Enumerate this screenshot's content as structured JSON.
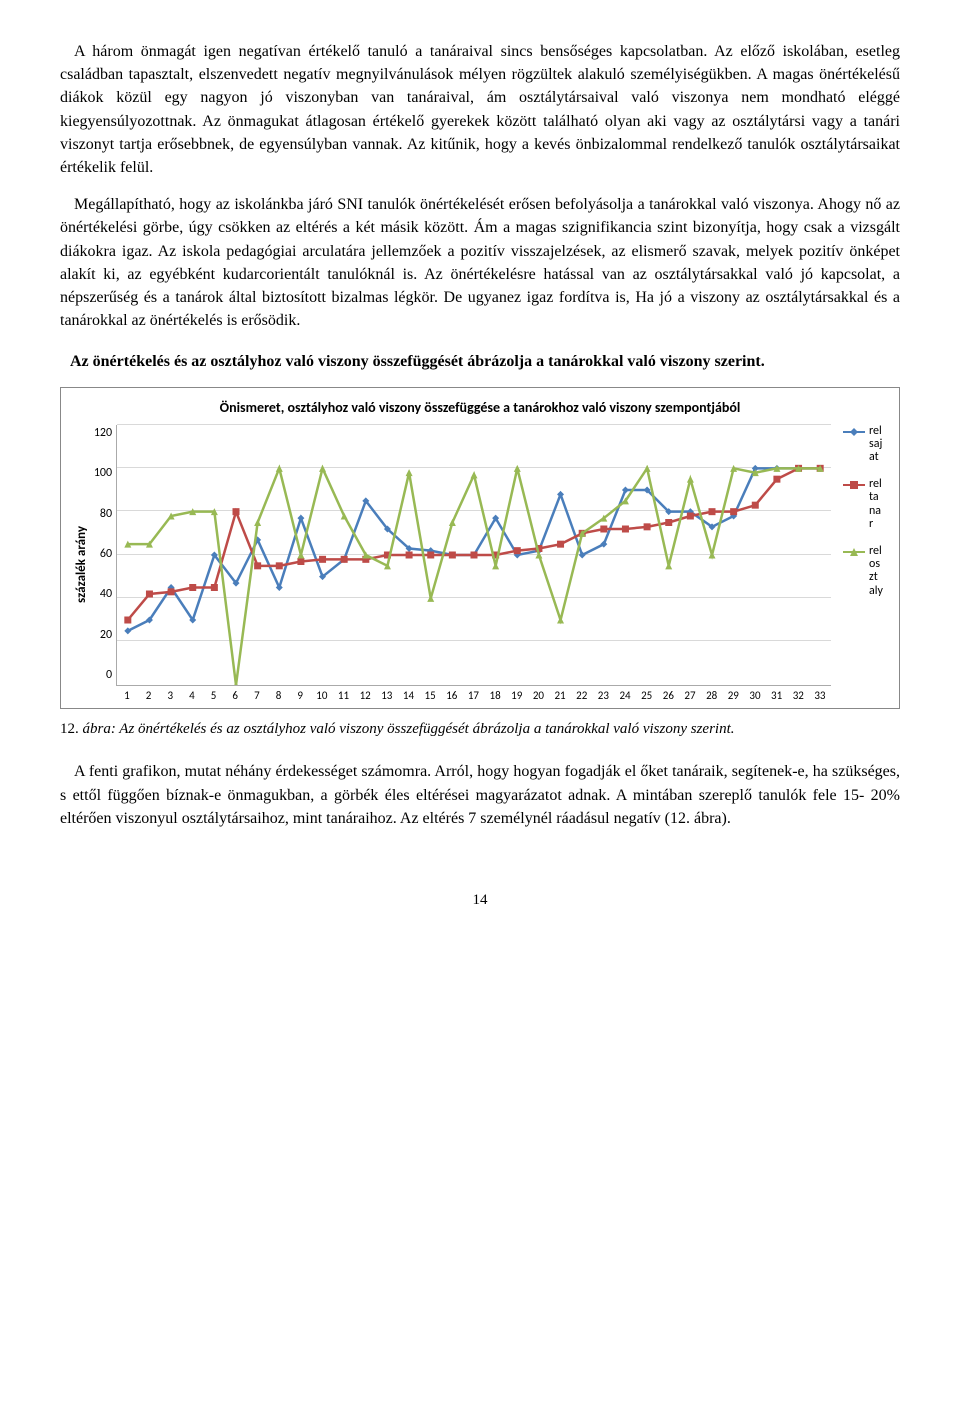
{
  "paragraphs": {
    "p1": "A három önmagát igen negatívan értékelő tanuló a tanáraival sincs bensőséges kapcsolatban. Az előző iskolában, esetleg családban tapasztalt, elszenvedett negatív megnyilvánulások mélyen rögzültek alakuló személyiségükben. A magas önértékelésű diákok közül egy nagyon jó viszonyban van tanáraival, ám osztálytársaival való viszonya nem mondható eléggé kiegyensúlyozottnak. Az önmagukat átlagosan értékelő gyerekek között található olyan aki vagy az osztálytársi vagy a tanári viszonyt tartja erősebbnek, de egyensúlyban vannak. Az kitűnik, hogy a kevés önbizalommal rendelkező tanulók osztálytársaikat értékelik felül.",
    "p2": "Megállapítható, hogy az iskolánkba járó SNI tanulók önértékelését erősen befolyásolja a tanárokkal való viszonya. Ahogy nő az önértékelési görbe, úgy csökken az eltérés a két másik között. Ám a magas szignifikancia szint bizonyítja, hogy csak a vizsgált diákokra igaz. Az iskola pedagógiai arculatára jellemzőek a pozitív visszajelzések, az elismerő szavak, melyek pozitív önképet alakít ki, az egyébként kudarcorientált tanulóknál is. Az önértékelésre hatással van az osztálytársakkal való jó kapcsolat, a népszerűség és a tanárok által biztosított bizalmas légkör. De ugyanez igaz fordítva is, Ha jó a viszony az osztálytársakkal és a tanárokkal az önértékelés is erősödik.",
    "heading": "Az önértékelés és az osztályhoz való viszony összefüggését  ábrázolja a tanárokkal való viszony szerint.",
    "caption_num": "12. ",
    "caption_text": "ábra: Az önértékelés és az osztályhoz való viszony összefüggését  ábrázolja a tanárokkal való viszony szerint.",
    "p3": "A fenti grafikon, mutat néhány érdekességet számomra. Arról, hogy hogyan fogadják el őket tanáraik, segítenek-e, ha szükséges, s ettől függően bíznak-e önmagukban, a görbék éles eltérései magyarázatot adnak. A mintában szereplő tanulók fele 15- 20% eltérően viszonyul osztálytársaihoz, mint tanáraihoz. Az eltérés 7 személynél ráadásul negatív (12. ábra).",
    "page_number": "14"
  },
  "chart": {
    "type": "line",
    "title": "Önismeret, osztályhoz való viszony összefüggése a tanárokhoz való viszony szempontjából",
    "y_label": "százalék arány",
    "ylim": [
      0,
      120
    ],
    "ytick_step": 20,
    "yticks": [
      120,
      100,
      80,
      60,
      40,
      20,
      0
    ],
    "x_categories": [
      "1",
      "2",
      "3",
      "4",
      "5",
      "6",
      "7",
      "8",
      "9",
      "10",
      "11",
      "12",
      "13",
      "14",
      "15",
      "16",
      "17",
      "18",
      "19",
      "20",
      "21",
      "22",
      "23",
      "24",
      "25",
      "26",
      "27",
      "28",
      "29",
      "30",
      "31",
      "32",
      "33"
    ],
    "background_color": "#ffffff",
    "grid_color": "#d9d9d9",
    "line_width": 2.5,
    "marker_size": 7,
    "series": [
      {
        "name": "rel sajat",
        "legend_label": "rel\nsaj\nat",
        "color": "#4a7ebb",
        "marker": "diamond",
        "values": [
          25,
          30,
          45,
          30,
          60,
          47,
          67,
          45,
          77,
          50,
          58,
          85,
          72,
          63,
          62,
          60,
          60,
          77,
          60,
          62,
          88,
          60,
          65,
          90,
          90,
          80,
          80,
          73,
          78,
          100,
          100,
          100,
          100
        ]
      },
      {
        "name": "rel tanar",
        "legend_label": "rel\nta\nna\nr",
        "color": "#be4b48",
        "marker": "square",
        "values": [
          30,
          42,
          43,
          45,
          45,
          80,
          55,
          55,
          57,
          58,
          58,
          58,
          60,
          60,
          60,
          60,
          60,
          60,
          62,
          63,
          65,
          70,
          72,
          72,
          73,
          75,
          78,
          80,
          80,
          83,
          95,
          100,
          100
        ]
      },
      {
        "name": "rel osztaly",
        "legend_label": "rel\nos\nzt\naly",
        "color": "#98b954",
        "marker": "triangle",
        "values": [
          65,
          65,
          78,
          80,
          80,
          0,
          75,
          100,
          60,
          100,
          78,
          60,
          55,
          98,
          40,
          75,
          97,
          55,
          100,
          60,
          30,
          70,
          77,
          85,
          100,
          55,
          95,
          60,
          100,
          98,
          100,
          100,
          100
        ]
      }
    ]
  }
}
